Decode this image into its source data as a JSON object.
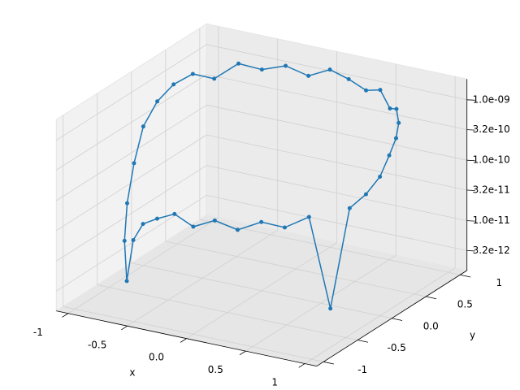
{
  "chart_data": {
    "type": "line3d",
    "color": "#1f77b4",
    "xlabel": "x",
    "ylabel": "y",
    "zscale": "log",
    "grid": true,
    "xlim": [
      -1.1,
      1.1
    ],
    "ylim": [
      -1.1,
      1.1
    ],
    "zlim": [
      1.5e-12,
      2.2e-09
    ],
    "xticks": [
      -1,
      -0.5,
      {
        "value": 0,
        "label": "0.0"
      },
      0.5,
      1
    ],
    "yticks": [
      -1,
      -0.5,
      {
        "value": 0,
        "label": "0.0"
      },
      0.5,
      1
    ],
    "zticks": [
      {
        "value": 3.2e-12,
        "label": "3.2e-12"
      },
      {
        "value": 1e-11,
        "label": "1.0e-11"
      },
      {
        "value": 3.2e-11,
        "label": "3.2e-11"
      },
      {
        "value": 1e-10,
        "label": "1.0e-10"
      },
      {
        "value": 3.2e-10,
        "label": "3.2e-10"
      },
      {
        "value": 1e-09,
        "label": "1.0e-09"
      }
    ],
    "x": [
      1,
      0.98,
      0.94,
      0.87,
      0.77,
      0.64,
      0.5,
      0.34,
      0.17,
      0,
      -0.17,
      -0.34,
      -0.5,
      -0.64,
      -0.77,
      -0.87,
      -0.94,
      -0.98,
      -1,
      -0.98,
      -0.94,
      -0.87,
      -0.77,
      -0.64,
      -0.5,
      -0.34,
      -0.17,
      0,
      0.17,
      0.34,
      0.5,
      0.64,
      0.77,
      0.87,
      0.94,
      0.98
    ],
    "y": [
      0,
      0.17,
      0.34,
      0.5,
      0.64,
      0.77,
      0.87,
      0.94,
      0.98,
      1,
      0.98,
      0.94,
      0.87,
      0.77,
      0.64,
      0.5,
      0.34,
      0.17,
      0,
      -0.17,
      -0.34,
      -0.5,
      -0.64,
      -0.77,
      -0.87,
      -0.94,
      -0.98,
      -1,
      -0.98,
      -0.94,
      -0.87,
      -0.77,
      -0.64,
      -0.5,
      -0.34,
      -0.17
    ],
    "z": [
      3e-10,
      5e-10,
      7e-10,
      9e-10,
      1.1e-09,
      8e-10,
      1.2e-09,
      9e-10,
      1.1e-09,
      1.3e-09,
      9e-10,
      1.2e-09,
      1e-09,
      1.3e-09,
      8e-10,
      1.1e-09,
      9e-10,
      6e-10,
      3e-10,
      1e-10,
      3e-11,
      1e-11,
      3e-12,
      2e-11,
      5e-11,
      8e-11,
      1.2e-10,
      9e-11,
      1.3e-10,
      1e-10,
      1.4e-10,
      1.1e-10,
      1.5e-10,
      4e-12,
      1.5e-10,
      2e-10
    ]
  }
}
